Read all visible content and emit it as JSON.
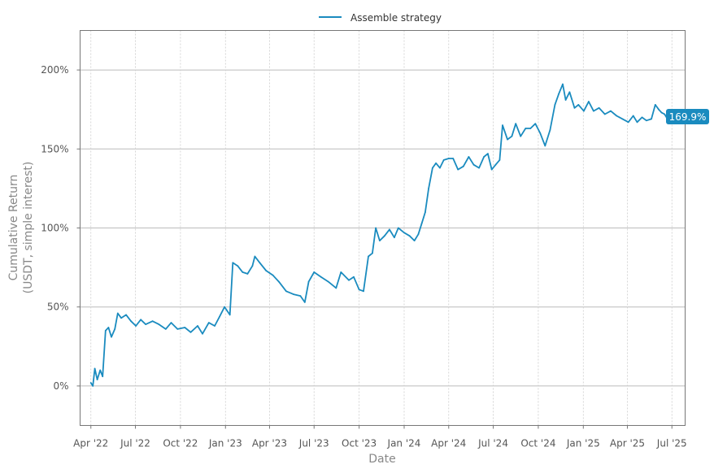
{
  "chart_data": {
    "type": "line",
    "xlabel": "Date",
    "ylabel": "Cumulative Return",
    "ylabel_line2": "(USDT, simple interest)",
    "ylim": [
      -25,
      225
    ],
    "xlim": [
      "2022-03-10",
      "2025-07-28"
    ],
    "grid": true,
    "legend_position": "top-center",
    "yticks": [
      {
        "value": 0,
        "label": "0%"
      },
      {
        "value": 50,
        "label": "50%"
      },
      {
        "value": 100,
        "label": "100%"
      },
      {
        "value": 150,
        "label": "150%"
      },
      {
        "value": 200,
        "label": "200%"
      }
    ],
    "xticks": [
      {
        "date": "2022-04-01",
        "label": "Apr '22"
      },
      {
        "date": "2022-07-01",
        "label": "Jul '22"
      },
      {
        "date": "2022-10-01",
        "label": "Oct '22"
      },
      {
        "date": "2023-01-01",
        "label": "Jan '23"
      },
      {
        "date": "2023-04-01",
        "label": "Apr '23"
      },
      {
        "date": "2023-07-01",
        "label": "Jul '23"
      },
      {
        "date": "2023-10-01",
        "label": "Oct '23"
      },
      {
        "date": "2024-01-01",
        "label": "Jan '24"
      },
      {
        "date": "2024-04-01",
        "label": "Apr '24"
      },
      {
        "date": "2024-07-01",
        "label": "Jul '24"
      },
      {
        "date": "2024-10-01",
        "label": "Oct '24"
      },
      {
        "date": "2025-01-01",
        "label": "Jan '25"
      },
      {
        "date": "2025-04-01",
        "label": "Apr '25"
      },
      {
        "date": "2025-07-01",
        "label": "Jul '25"
      }
    ],
    "series": [
      {
        "name": "Assemble strategy",
        "color": "#1a8bbf",
        "end_label": "169.9%",
        "points": [
          [
            "2022-04-01",
            2
          ],
          [
            "2022-04-05",
            0
          ],
          [
            "2022-04-09",
            11
          ],
          [
            "2022-04-14",
            4
          ],
          [
            "2022-04-20",
            10
          ],
          [
            "2022-04-25",
            6
          ],
          [
            "2022-05-01",
            35
          ],
          [
            "2022-05-07",
            37
          ],
          [
            "2022-05-13",
            31
          ],
          [
            "2022-05-20",
            36
          ],
          [
            "2022-05-26",
            46
          ],
          [
            "2022-06-02",
            43
          ],
          [
            "2022-06-12",
            45
          ],
          [
            "2022-06-22",
            41
          ],
          [
            "2022-07-02",
            38
          ],
          [
            "2022-07-12",
            42
          ],
          [
            "2022-07-22",
            39
          ],
          [
            "2022-08-05",
            41
          ],
          [
            "2022-08-18",
            39
          ],
          [
            "2022-09-01",
            36
          ],
          [
            "2022-09-12",
            40
          ],
          [
            "2022-09-25",
            36
          ],
          [
            "2022-10-10",
            37
          ],
          [
            "2022-10-22",
            34
          ],
          [
            "2022-11-05",
            38
          ],
          [
            "2022-11-15",
            33
          ],
          [
            "2022-11-28",
            40
          ],
          [
            "2022-12-10",
            38
          ],
          [
            "2022-12-20",
            44
          ],
          [
            "2022-12-30",
            50
          ],
          [
            "2023-01-10",
            45
          ],
          [
            "2023-01-16",
            78
          ],
          [
            "2023-01-26",
            76
          ],
          [
            "2023-02-05",
            72
          ],
          [
            "2023-02-15",
            71
          ],
          [
            "2023-02-25",
            76
          ],
          [
            "2023-03-02",
            82
          ],
          [
            "2023-03-12",
            78
          ],
          [
            "2023-03-25",
            73
          ],
          [
            "2023-04-08",
            70
          ],
          [
            "2023-04-20",
            66
          ],
          [
            "2023-05-05",
            60
          ],
          [
            "2023-05-20",
            58
          ],
          [
            "2023-06-03",
            57
          ],
          [
            "2023-06-12",
            53
          ],
          [
            "2023-06-20",
            66
          ],
          [
            "2023-07-01",
            72
          ],
          [
            "2023-07-15",
            69
          ],
          [
            "2023-07-30",
            66
          ],
          [
            "2023-08-15",
            62
          ],
          [
            "2023-08-25",
            72
          ],
          [
            "2023-09-10",
            67
          ],
          [
            "2023-09-20",
            69
          ],
          [
            "2023-10-01",
            61
          ],
          [
            "2023-10-10",
            60
          ],
          [
            "2023-10-20",
            82
          ],
          [
            "2023-10-28",
            84
          ],
          [
            "2023-11-04",
            100
          ],
          [
            "2023-11-12",
            92
          ],
          [
            "2023-11-22",
            95
          ],
          [
            "2023-12-02",
            99
          ],
          [
            "2023-12-12",
            94
          ],
          [
            "2023-12-20",
            100
          ],
          [
            "2024-01-01",
            97
          ],
          [
            "2024-01-12",
            95
          ],
          [
            "2024-01-22",
            92
          ],
          [
            "2024-01-30",
            96
          ],
          [
            "2024-02-06",
            103
          ],
          [
            "2024-02-13",
            110
          ],
          [
            "2024-02-20",
            125
          ],
          [
            "2024-02-28",
            138
          ],
          [
            "2024-03-06",
            141
          ],
          [
            "2024-03-14",
            138
          ],
          [
            "2024-03-22",
            143
          ],
          [
            "2024-04-01",
            144
          ],
          [
            "2024-04-10",
            144
          ],
          [
            "2024-04-20",
            137
          ],
          [
            "2024-05-01",
            139
          ],
          [
            "2024-05-12",
            145
          ],
          [
            "2024-05-22",
            140
          ],
          [
            "2024-06-02",
            138
          ],
          [
            "2024-06-12",
            145
          ],
          [
            "2024-06-20",
            147
          ],
          [
            "2024-06-28",
            137
          ],
          [
            "2024-07-06",
            140
          ],
          [
            "2024-07-14",
            143
          ],
          [
            "2024-07-20",
            165
          ],
          [
            "2024-07-30",
            156
          ],
          [
            "2024-08-08",
            158
          ],
          [
            "2024-08-16",
            166
          ],
          [
            "2024-08-26",
            158
          ],
          [
            "2024-09-05",
            163
          ],
          [
            "2024-09-15",
            163
          ],
          [
            "2024-09-25",
            166
          ],
          [
            "2024-10-05",
            160
          ],
          [
            "2024-10-15",
            152
          ],
          [
            "2024-10-25",
            162
          ],
          [
            "2024-11-04",
            178
          ],
          [
            "2024-11-12",
            185
          ],
          [
            "2024-11-20",
            191
          ],
          [
            "2024-11-26",
            181
          ],
          [
            "2024-12-04",
            186
          ],
          [
            "2024-12-14",
            176
          ],
          [
            "2024-12-22",
            178
          ],
          [
            "2025-01-02",
            174
          ],
          [
            "2025-01-12",
            180
          ],
          [
            "2025-01-22",
            174
          ],
          [
            "2025-02-02",
            176
          ],
          [
            "2025-02-14",
            172
          ],
          [
            "2025-02-26",
            174
          ],
          [
            "2025-03-10",
            171
          ],
          [
            "2025-03-22",
            169
          ],
          [
            "2025-04-03",
            167
          ],
          [
            "2025-04-13",
            171
          ],
          [
            "2025-04-21",
            167
          ],
          [
            "2025-05-01",
            170
          ],
          [
            "2025-05-10",
            168
          ],
          [
            "2025-05-20",
            169
          ],
          [
            "2025-05-28",
            178
          ],
          [
            "2025-06-04",
            175
          ],
          [
            "2025-06-10",
            173
          ],
          [
            "2025-06-16",
            172
          ],
          [
            "2025-06-20",
            170
          ]
        ]
      }
    ]
  }
}
